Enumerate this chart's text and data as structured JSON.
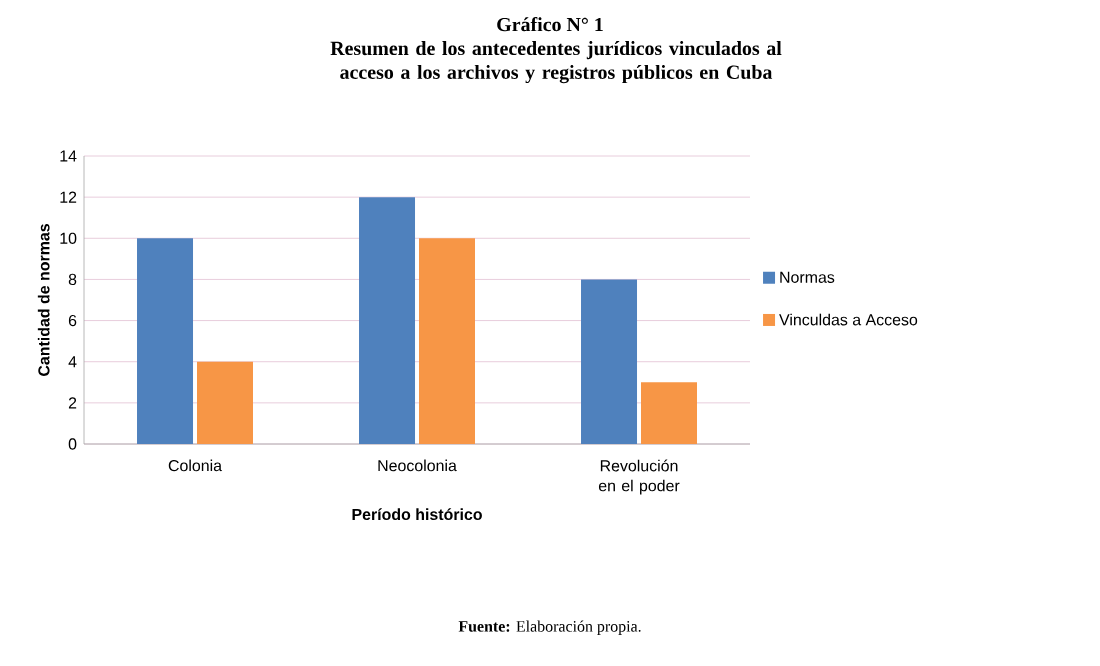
{
  "chart_data": {
    "type": "bar",
    "title": "Gráfico N° 1",
    "subtitle": "Resumen de los antecedentes jurídicos vinculados al acceso a los archivos y registros públicos en Cuba",
    "xlabel": "Período histórico",
    "ylabel": "Cantidad de normas",
    "categories": [
      "Colonia",
      "Neocolonia",
      "Revolución en el poder"
    ],
    "series": [
      {
        "name": "Normas",
        "color": "#4f81bd",
        "values": [
          10,
          12,
          8
        ]
      },
      {
        "name": "Vinculdas a Acceso",
        "color": "#f79646",
        "values": [
          4,
          10,
          3
        ]
      }
    ],
    "ylim": [
      0,
      14
    ],
    "yticks": [
      0,
      2,
      4,
      6,
      8,
      10,
      12,
      14
    ],
    "grid": "y",
    "legend": "right",
    "annotations": [
      "**Fuente:** Elaboración propia."
    ]
  }
}
